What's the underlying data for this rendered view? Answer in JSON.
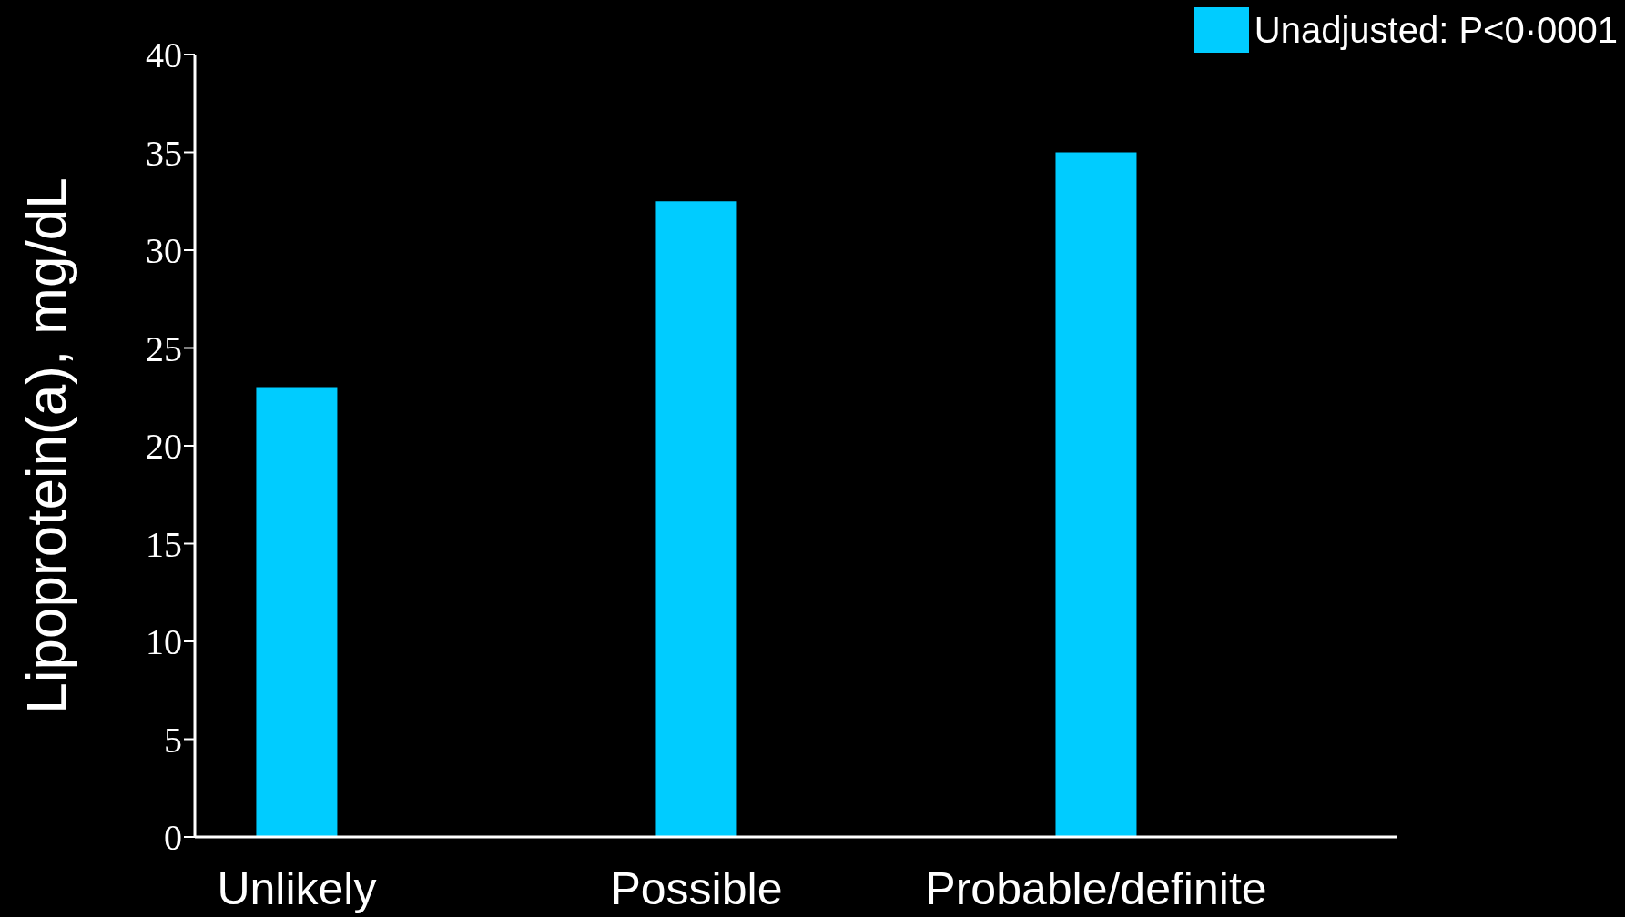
{
  "chart_data": {
    "type": "bar",
    "ylabel": "Lipoprotein(a), mg/dL",
    "categories": [
      "Unlikely",
      "Possible",
      "Probable/definite"
    ],
    "series": [
      {
        "name": "Unadjusted: P<0·0001",
        "color": "#00ccff",
        "values": [
          23,
          32.5,
          35
        ]
      }
    ],
    "ylim": [
      0,
      40
    ],
    "yticks": [
      0,
      5,
      10,
      15,
      20,
      25,
      30,
      35,
      40
    ],
    "legend": "top right",
    "grid": false
  }
}
